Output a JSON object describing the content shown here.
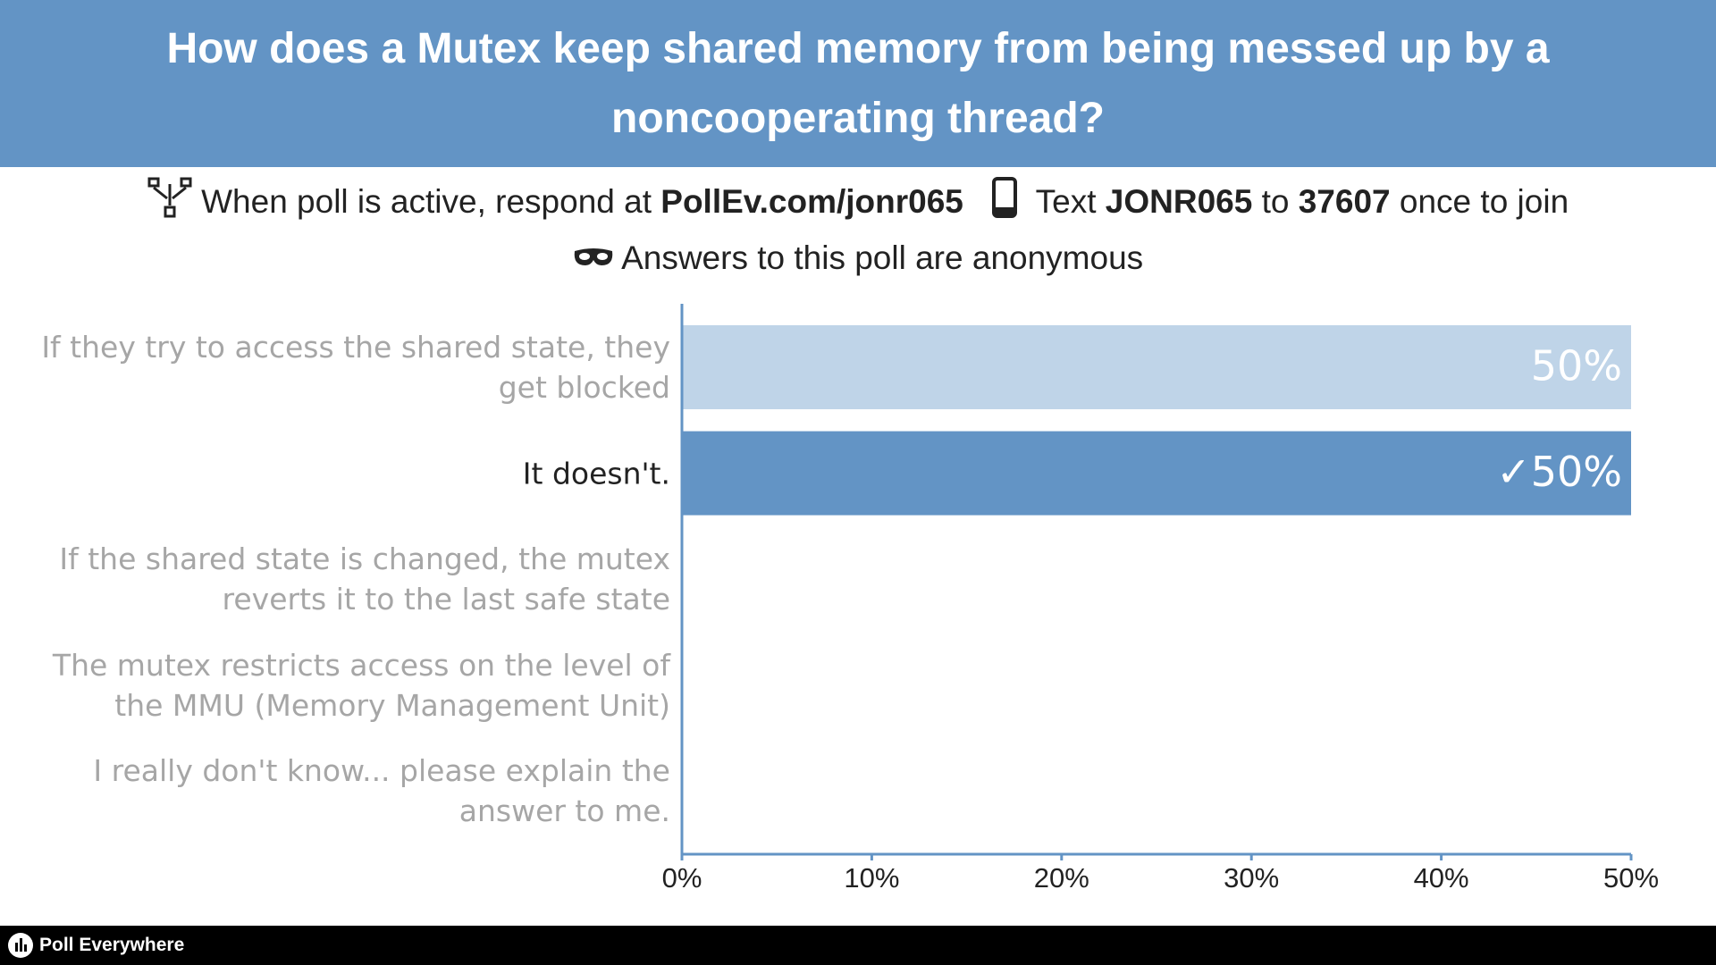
{
  "header": {
    "title": "How does a Mutex keep shared memory from being messed up by a noncooperating thread?"
  },
  "instructions": {
    "respond_prefix": "When poll is active, respond at",
    "url": "PollEv.com/jonr065",
    "text_prefix": "Text",
    "code": "JONR065",
    "to": "to",
    "number": "37607",
    "suffix": "once to join",
    "anonymous": "Answers to this poll are anonymous"
  },
  "chart_data": {
    "type": "hbar",
    "categories": [
      "If they try to access the shared state, they get blocked",
      "It doesn't.",
      "If the shared state is changed, the mutex reverts it to the last safe state",
      "The mutex restricts access on the level of the MMU (Memory Management Unit)",
      "I really don't know... please explain the answer to me."
    ],
    "values": [
      50,
      50,
      0,
      0,
      0
    ],
    "value_labels": [
      "50%",
      "✓50%",
      null,
      null,
      null
    ],
    "colors": [
      "#bfd4e8",
      "#6394c5",
      "#6394c5",
      "#6394c5",
      "#6394c5"
    ],
    "label_colors": [
      "#a6a6a6",
      "#222222",
      "#a6a6a6",
      "#a6a6a6",
      "#a6a6a6"
    ],
    "xlim": [
      0,
      50
    ],
    "xticks": [
      {
        "value": 0,
        "label": "0%"
      },
      {
        "value": 10,
        "label": "10%"
      },
      {
        "value": 20,
        "label": "20%"
      },
      {
        "value": 30,
        "label": "30%"
      },
      {
        "value": 40,
        "label": "40%"
      },
      {
        "value": 50,
        "label": "50%"
      }
    ]
  },
  "footer": {
    "brand": "Poll Everywhere"
  }
}
